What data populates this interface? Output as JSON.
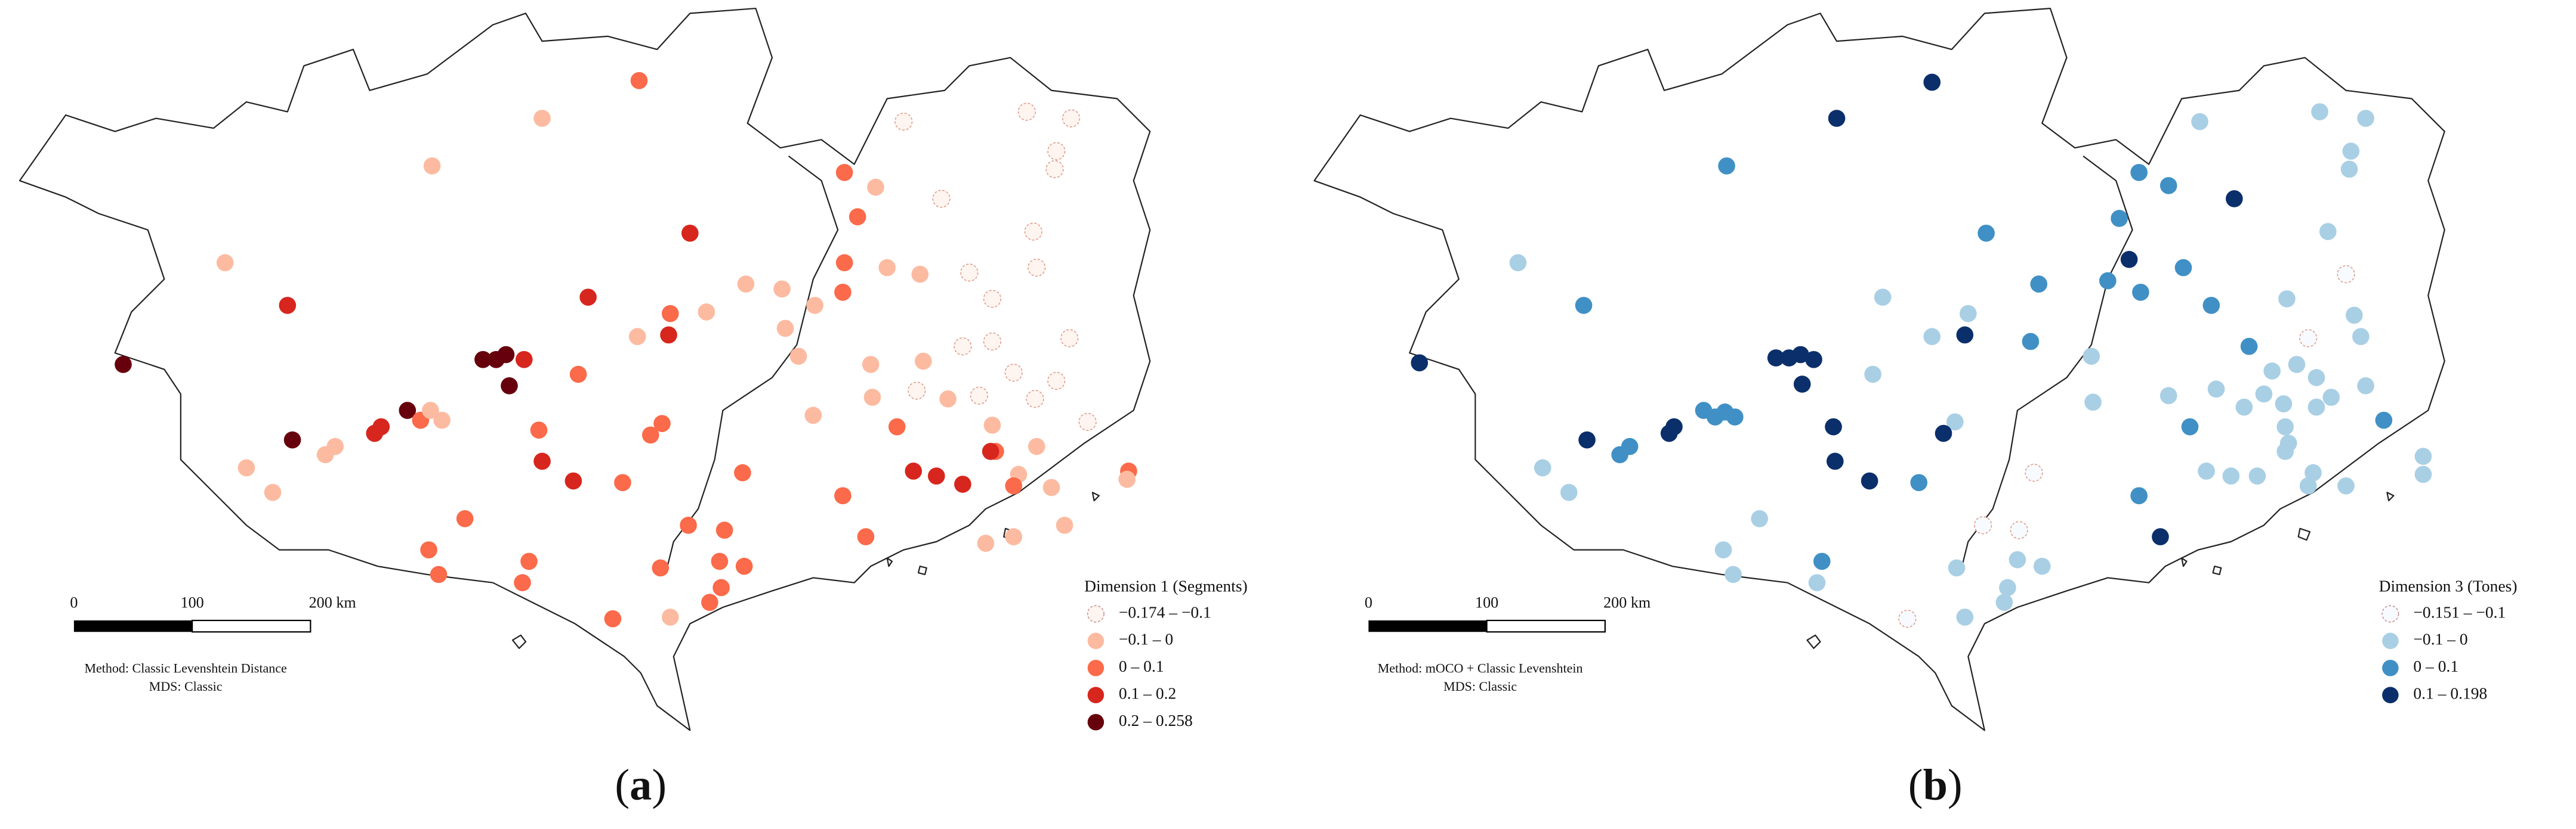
{
  "panels": [
    {
      "caption_letter": "a",
      "legend_title": "Dimension 1 (Segments)",
      "legend": [
        {
          "label": "−0.174 – −0.1",
          "color": "#fff5f0"
        },
        {
          "label": "−0.1 – 0",
          "color": "#fcbba1"
        },
        {
          "label": "0 – 0.1",
          "color": "#fb6a4a"
        },
        {
          "label": "0.1 – 0.2",
          "color": "#d7261e"
        },
        {
          "label": "0.2 – 0.258",
          "color": "#67000d"
        }
      ],
      "scale_labels": [
        "0",
        "100",
        "200 km"
      ],
      "method": [
        "Method: Classic Levenshtein Distance",
        "MDS: Classic"
      ]
    },
    {
      "caption_letter": "b",
      "legend_title": "Dimension 3 (Tones)",
      "legend": [
        {
          "label": "−0.151 – −0.1",
          "color": "#f7fbff"
        },
        {
          "label": "−0.1 – 0",
          "color": "#a9cfe5"
        },
        {
          "label": "0 – 0.1",
          "color": "#4090c5"
        },
        {
          "label": "0.1 – 0.198",
          "color": "#0b2f6b"
        }
      ],
      "scale_labels": [
        "0",
        "100",
        "200 km"
      ],
      "method": [
        "Method: mOCO + Classic Levenshtein",
        "MDS: Classic"
      ]
    }
  ]
}
